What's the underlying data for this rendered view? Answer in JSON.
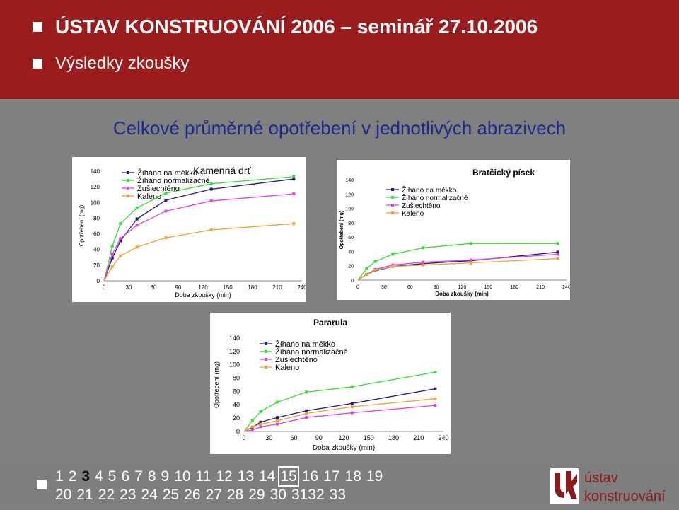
{
  "header": {
    "line1": "ÚSTAV KONSTRUOVÁNÍ 2006 – seminář 27.10.2006",
    "line2": "Výsledky zkoušky"
  },
  "subtitle": "Celkové průměrné opotřebení v jednotlivých abrazivech",
  "colors": {
    "header_bg": "#9b1c1c",
    "background": "#808080",
    "subtitle": "#1a2a8a",
    "series": [
      "#1a1a80",
      "#33dd33",
      "#e040e0",
      "#f0a030"
    ]
  },
  "chart_data": [
    {
      "type": "line",
      "title": "Kamenná drť",
      "ylabel": "Opotřebení (mg)",
      "xlabel": "Doba zkoušky (min)",
      "xlim": [
        0,
        240
      ],
      "ylim": [
        0,
        140
      ],
      "xticks": [
        0,
        30,
        60,
        90,
        120,
        150,
        180,
        210,
        240
      ],
      "yticks": [
        0,
        20,
        40,
        60,
        80,
        100,
        120,
        140
      ],
      "legend": "top-left",
      "x": [
        0,
        10,
        20,
        40,
        75,
        130,
        230
      ],
      "series": [
        {
          "name": "Žíháno na měkko",
          "values": [
            0,
            29,
            51,
            79,
            103,
            117,
            130
          ]
        },
        {
          "name": "Žíháno normalizačně",
          "values": [
            0,
            44,
            73,
            93,
            112,
            124,
            133
          ]
        },
        {
          "name": "Zušlechtěno",
          "values": [
            0,
            34,
            54,
            71,
            89,
            102,
            111
          ]
        },
        {
          "name": "Kaleno",
          "values": [
            0,
            18,
            32,
            43,
            55,
            65,
            73
          ]
        }
      ]
    },
    {
      "type": "line",
      "title": "Bratčický písek",
      "ylabel": "Opotřebení (mg)",
      "xlabel": "Doba zkoušky (min)",
      "xlim": [
        0,
        240
      ],
      "ylim": [
        0,
        140
      ],
      "xticks": [
        0,
        30,
        60,
        90,
        120,
        150,
        180,
        210,
        240
      ],
      "yticks": [
        0,
        20,
        40,
        60,
        80,
        100,
        120,
        140
      ],
      "legend": "top-right",
      "x": [
        0,
        10,
        20,
        40,
        75,
        130,
        230
      ],
      "series": [
        {
          "name": "Žíháno na měkko",
          "values": [
            0,
            8,
            13,
            19,
            23,
            27,
            39
          ]
        },
        {
          "name": "Žíháno normalizačně",
          "values": [
            0,
            16,
            26,
            36,
            45,
            51,
            51
          ]
        },
        {
          "name": "Zušlechtěno",
          "values": [
            0,
            8,
            15,
            21,
            25,
            28,
            36
          ]
        },
        {
          "name": "Kaleno",
          "values": [
            0,
            8,
            14,
            19,
            21,
            24,
            30
          ]
        }
      ]
    },
    {
      "type": "line",
      "title": "Pararula",
      "ylabel": "Opotřebení (mg)",
      "xlabel": "Doba zkoušky (min)",
      "xlim": [
        0,
        240
      ],
      "ylim": [
        0,
        140
      ],
      "xticks": [
        0,
        30,
        60,
        90,
        120,
        150,
        180,
        210,
        240
      ],
      "yticks": [
        0,
        20,
        40,
        60,
        80,
        100,
        120,
        140
      ],
      "legend": "top-right",
      "x": [
        0,
        10,
        20,
        40,
        75,
        130,
        230
      ],
      "series": [
        {
          "name": "Žíháno na měkko",
          "values": [
            0,
            6,
            14,
            21,
            31,
            42,
            64
          ]
        },
        {
          "name": "Žíháno normalizačně",
          "values": [
            0,
            16,
            30,
            44,
            59,
            67,
            89
          ]
        },
        {
          "name": "Zušlechtěno",
          "values": [
            0,
            2,
            7,
            11,
            21,
            28,
            39
          ]
        },
        {
          "name": "Kaleno",
          "values": [
            0,
            7,
            11,
            16,
            27,
            37,
            49
          ]
        }
      ]
    }
  ],
  "nav": {
    "row1": [
      "1",
      "2",
      "3",
      "4",
      "5",
      "6",
      "7",
      "8",
      "9",
      "10",
      "11",
      "12",
      "13",
      "14",
      "15",
      "16",
      "17",
      "18",
      "19"
    ],
    "row2": [
      "20",
      "21",
      "22",
      "23",
      "24",
      "25",
      "26",
      "27",
      "28",
      "29",
      "30",
      "3132",
      "33"
    ],
    "current": "3",
    "boxed": "15"
  },
  "logo": {
    "line1": "ústav",
    "line2": "konstruování",
    "color": "#8b1a1a"
  }
}
